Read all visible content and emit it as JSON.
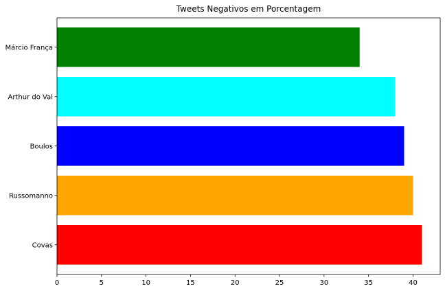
{
  "chart_data": {
    "type": "bar",
    "orientation": "horizontal",
    "title": "Tweets Negativos em Porcentagem",
    "xlabel": "",
    "ylabel": "",
    "categories": [
      "Covas",
      "Russomanno",
      "Boulos",
      "Arthur do Val",
      "Márcio França"
    ],
    "values": [
      41,
      40,
      39,
      38,
      34
    ],
    "colors": [
      "#ff0000",
      "#ffa500",
      "#0000ff",
      "#00ffff",
      "#008000"
    ],
    "xlim": [
      0,
      43.05
    ],
    "xticks": [
      0,
      5,
      10,
      15,
      20,
      25,
      30,
      35,
      40
    ],
    "grid": false,
    "legend": false
  }
}
